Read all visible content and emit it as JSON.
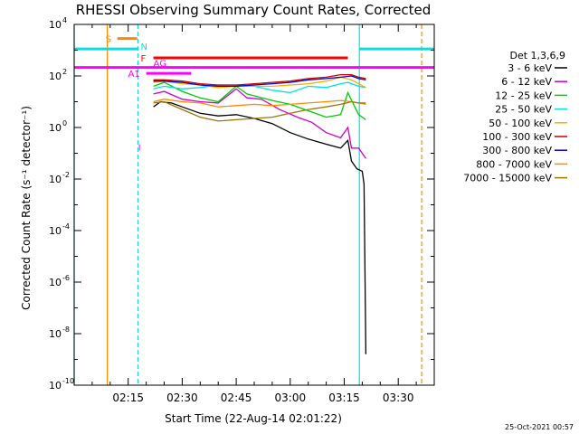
{
  "chart_data": {
    "type": "line",
    "title": "RHESSI Observing Summary Count Rates, Corrected",
    "xlabel": "Start Time (22-Aug-14 02:01:22)",
    "ylabel": "Corrected Count Rate (s⁻¹ detector⁻¹)",
    "x_unit": "minutes since 02:00 UT",
    "xlim": [
      0,
      100
    ],
    "ylim_log10": [
      -10,
      4
    ],
    "y_scale": "log",
    "x_ticks": [
      {
        "label": "02:15",
        "value": 15
      },
      {
        "label": "02:30",
        "value": 30
      },
      {
        "label": "02:45",
        "value": 45
      },
      {
        "label": "03:00",
        "value": 60
      },
      {
        "label": "03:15",
        "value": 75
      },
      {
        "label": "03:30",
        "value": 90
      }
    ],
    "y_ticks": [
      {
        "label": "10",
        "exp": "4",
        "value": 4
      },
      {
        "label": "10",
        "exp": "2",
        "value": 2
      },
      {
        "label": "10",
        "exp": "0",
        "value": 0
      },
      {
        "label": "10",
        "exp": "-2",
        "value": -2
      },
      {
        "label": "10",
        "exp": "-4",
        "value": -4
      },
      {
        "label": "10",
        "exp": "-6",
        "value": -6
      },
      {
        "label": "10",
        "exp": "-8",
        "value": -8
      },
      {
        "label": "10",
        "exp": "-10",
        "value": -10
      }
    ],
    "legend_title": "Det 1,3,6,9",
    "legend_position": "right",
    "series": [
      {
        "name": "3 - 6 keV",
        "color": "#000000",
        "points": [
          [
            22,
            0.8
          ],
          [
            24,
            1.0
          ],
          [
            27,
            0.95
          ],
          [
            30,
            0.8
          ],
          [
            35,
            0.55
          ],
          [
            40,
            0.45
          ],
          [
            45,
            0.5
          ],
          [
            50,
            0.35
          ],
          [
            55,
            0.15
          ],
          [
            60,
            -0.2
          ],
          [
            65,
            -0.45
          ],
          [
            70,
            -0.65
          ],
          [
            74,
            -0.8
          ],
          [
            76,
            -0.5
          ],
          [
            77,
            -1.3
          ],
          [
            78.5,
            -1.6
          ],
          [
            80,
            -1.7
          ],
          [
            80.5,
            -2.2
          ],
          [
            81,
            -8.8
          ]
        ]
      },
      {
        "name": "6 - 12 keV",
        "color": "#cc00cc",
        "points": [
          [
            22,
            1.3
          ],
          [
            25,
            1.4
          ],
          [
            30,
            1.1
          ],
          [
            35,
            1.0
          ],
          [
            40,
            0.95
          ],
          [
            45,
            1.5
          ],
          [
            48,
            1.15
          ],
          [
            52,
            1.1
          ],
          [
            57,
            0.7
          ],
          [
            62,
            0.4
          ],
          [
            66,
            0.2
          ],
          [
            70,
            -0.2
          ],
          [
            74,
            -0.4
          ],
          [
            76,
            0.0
          ],
          [
            77,
            -0.8
          ],
          [
            79,
            -0.8
          ],
          [
            81,
            -1.2
          ]
        ]
      },
      {
        "name": "12 - 25 keV",
        "color": "#00cc00",
        "points": [
          [
            22,
            1.6
          ],
          [
            25,
            1.75
          ],
          [
            30,
            1.4
          ],
          [
            35,
            1.15
          ],
          [
            40,
            1.0
          ],
          [
            45,
            1.6
          ],
          [
            48,
            1.3
          ],
          [
            55,
            1.05
          ],
          [
            60,
            0.9
          ],
          [
            65,
            0.65
          ],
          [
            70,
            0.4
          ],
          [
            74,
            0.5
          ],
          [
            76,
            1.35
          ],
          [
            79,
            0.5
          ],
          [
            81,
            0.3
          ]
        ]
      },
      {
        "name": "25 - 50 keV",
        "color": "#00e0e0",
        "points": [
          [
            22,
            1.5
          ],
          [
            25,
            1.6
          ],
          [
            30,
            1.5
          ],
          [
            35,
            1.55
          ],
          [
            40,
            1.65
          ],
          [
            45,
            1.65
          ],
          [
            50,
            1.6
          ],
          [
            55,
            1.45
          ],
          [
            60,
            1.35
          ],
          [
            65,
            1.6
          ],
          [
            70,
            1.55
          ],
          [
            74,
            1.7
          ],
          [
            76,
            1.75
          ],
          [
            79,
            1.6
          ],
          [
            81,
            1.55
          ]
        ]
      },
      {
        "name": "50 - 100 keV",
        "color": "#ffaa00",
        "points": [
          [
            22,
            1.75
          ],
          [
            25,
            1.8
          ],
          [
            30,
            1.7
          ],
          [
            35,
            1.65
          ],
          [
            40,
            1.55
          ],
          [
            45,
            1.6
          ],
          [
            50,
            1.6
          ],
          [
            55,
            1.6
          ],
          [
            60,
            1.65
          ],
          [
            65,
            1.7
          ],
          [
            70,
            1.8
          ],
          [
            74,
            1.95
          ],
          [
            77,
            1.85
          ],
          [
            79,
            1.7
          ],
          [
            81,
            1.55
          ]
        ]
      },
      {
        "name": "100 - 300 keV",
        "color": "#cc0000",
        "points": [
          [
            22,
            1.85
          ],
          [
            25,
            1.85
          ],
          [
            30,
            1.8
          ],
          [
            35,
            1.7
          ],
          [
            40,
            1.65
          ],
          [
            45,
            1.65
          ],
          [
            50,
            1.7
          ],
          [
            55,
            1.75
          ],
          [
            60,
            1.8
          ],
          [
            65,
            1.9
          ],
          [
            70,
            1.95
          ],
          [
            74,
            2.05
          ],
          [
            77,
            2.05
          ],
          [
            79,
            1.95
          ],
          [
            81,
            1.9
          ]
        ]
      },
      {
        "name": "300 - 800 keV",
        "color": "#0000cc",
        "points": [
          [
            22,
            1.8
          ],
          [
            25,
            1.8
          ],
          [
            30,
            1.75
          ],
          [
            35,
            1.65
          ],
          [
            40,
            1.6
          ],
          [
            45,
            1.6
          ],
          [
            50,
            1.65
          ],
          [
            55,
            1.7
          ],
          [
            60,
            1.75
          ],
          [
            65,
            1.85
          ],
          [
            70,
            1.9
          ],
          [
            74,
            1.95
          ],
          [
            77,
            2.0
          ],
          [
            79,
            1.9
          ],
          [
            81,
            1.85
          ]
        ]
      },
      {
        "name": "800 - 7000 keV",
        "color": "#ff8800",
        "points": [
          [
            22,
            1.0
          ],
          [
            25,
            1.1
          ],
          [
            30,
            1.0
          ],
          [
            35,
            0.95
          ],
          [
            40,
            0.8
          ],
          [
            45,
            0.85
          ],
          [
            50,
            0.9
          ],
          [
            55,
            0.85
          ],
          [
            60,
            0.9
          ],
          [
            65,
            0.95
          ],
          [
            70,
            1.0
          ],
          [
            74,
            1.05
          ],
          [
            77,
            1.0
          ],
          [
            79,
            0.95
          ],
          [
            81,
            0.9
          ]
        ]
      },
      {
        "name": "7000 - 15000 keV",
        "color": "#997700",
        "points": [
          [
            22,
            0.95
          ],
          [
            25,
            1.0
          ],
          [
            30,
            0.7
          ],
          [
            35,
            0.4
          ],
          [
            40,
            0.25
          ],
          [
            45,
            0.3
          ],
          [
            50,
            0.35
          ],
          [
            55,
            0.4
          ],
          [
            60,
            0.55
          ],
          [
            65,
            0.7
          ],
          [
            70,
            0.8
          ],
          [
            74,
            0.9
          ],
          [
            77,
            1.0
          ],
          [
            79,
            0.95
          ],
          [
            81,
            0.95
          ]
        ]
      }
    ],
    "flag_bars": [
      {
        "label": "S",
        "color": "#ff8800",
        "x_start": 12.0,
        "x_end": 17.5,
        "y_log": 3.45
      },
      {
        "label": "N",
        "color": "#00e0e0",
        "x_start": 0,
        "x_end": 17.7,
        "y_log": 3.05
      },
      {
        "label": "N",
        "color": "#00e0e0",
        "x_start": 79.2,
        "x_end": 100,
        "y_log": 3.05
      },
      {
        "label": "F",
        "color": "#ff0000",
        "x_start": 22.0,
        "x_end": 76.0,
        "y_log": 2.7
      },
      {
        "label": "AG",
        "color": "#ff00ff",
        "x_start": 0,
        "x_end": 100,
        "y_log": 2.33
      },
      {
        "label": "A1",
        "color": "#ff00ff",
        "x_start": 20.0,
        "x_end": 32.5,
        "y_log": 2.1
      }
    ],
    "label_I": {
      "label": "I",
      "color": "#ff00ff",
      "x": 17.5,
      "y_log": -0.9
    },
    "vertical_lines": [
      {
        "x": 0,
        "color": "#00e0e0",
        "style": "solid"
      },
      {
        "x": 9.2,
        "color": "#ff8800",
        "style": "solid"
      },
      {
        "x": 17.7,
        "color": "#00e0e0",
        "style": "dashed"
      },
      {
        "x": 79.2,
        "color": "#00e0e0",
        "style": "solid"
      },
      {
        "x": 96.5,
        "color": "#ff8800",
        "style": "dashed"
      }
    ]
  },
  "footer": {
    "timestamp": "25-Oct-2021 00:57"
  }
}
